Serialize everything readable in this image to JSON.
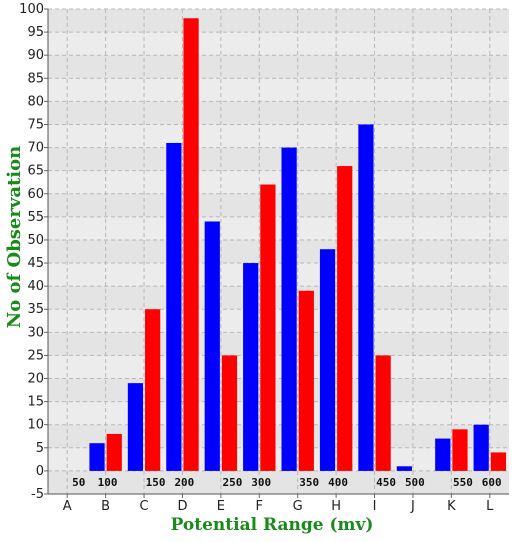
{
  "chart_data": {
    "type": "bar",
    "xlabel": "Potential Range (mv)",
    "ylabel": "No of Observation",
    "ylim": [
      -5,
      100
    ],
    "ytick_step": 5,
    "grid": true,
    "categories": [
      "A",
      "B",
      "C",
      "D",
      "E",
      "F",
      "G",
      "H",
      "I",
      "J",
      "K",
      "L"
    ],
    "range_labels": [
      "50",
      "100",
      "150",
      "200",
      "250",
      "300",
      "350",
      "400",
      "450",
      "500",
      "550",
      "600"
    ],
    "series": [
      {
        "color": "#0000ff",
        "values": [
          0,
          6,
          19,
          71,
          54,
          45,
          70,
          48,
          75,
          1,
          7,
          10
        ]
      },
      {
        "color": "#ff0000",
        "values": [
          0,
          8,
          35,
          98,
          25,
          62,
          39,
          66,
          25,
          0,
          9,
          4
        ]
      }
    ],
    "colors": {
      "plot_background": "#e4e4e4",
      "band": "#ececec",
      "grid": "#b8b8b8",
      "axis_title": "#1a8a1a"
    }
  }
}
